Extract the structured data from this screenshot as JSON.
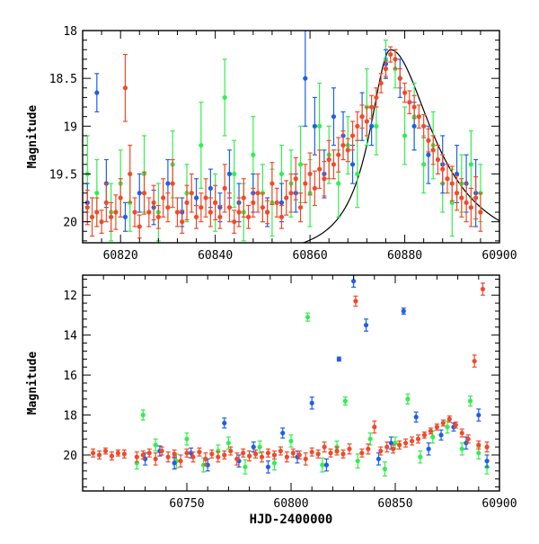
{
  "colors": {
    "blue": "#1f5fe8",
    "green": "#33ee4d",
    "red": "#f04a2a",
    "axis": "#000000",
    "model": "#000000"
  },
  "chart_data": [
    {
      "type": "scatter",
      "name": "top-panel",
      "title": "",
      "xlabel": "",
      "ylabel": "Magnitude",
      "xlim": [
        60812,
        60900
      ],
      "ylim": [
        20.22,
        18.0
      ],
      "y_inverted": true,
      "xticks": [
        60820,
        60840,
        60860,
        60880,
        60900
      ],
      "yticks": [
        18,
        18.5,
        19,
        19.5,
        20
      ],
      "ytick_labels": [
        "18",
        "18.5",
        "19",
        "19.5",
        "20"
      ],
      "grid": false,
      "legend": "none",
      "model_curve": {
        "description_free": true,
        "t_peak": 60877,
        "peak_mag": 18.2,
        "baseline_mag": 20.4,
        "rise_width": 5.5,
        "decline_width": 11,
        "stroke": "#000000"
      },
      "series": [
        {
          "color_key": "red",
          "x": [
            60813,
            60814,
            60815,
            60816,
            60817,
            60818,
            60819,
            60820,
            60821,
            60822,
            60823,
            60824,
            60825,
            60826,
            60827,
            60828,
            60829,
            60830,
            60831,
            60832,
            60833,
            60834,
            60835,
            60836,
            60837,
            60838,
            60839,
            60840,
            60841,
            60842,
            60843,
            60844,
            60845,
            60846,
            60847,
            60848,
            60849,
            60850,
            60851,
            60852,
            60853,
            60854,
            60855,
            60856,
            60857,
            60858,
            60859,
            60860,
            60861,
            60862,
            60863,
            60864,
            60865,
            60866,
            60867,
            60868,
            60869,
            60870,
            60871,
            60872,
            60873,
            60874,
            60875,
            60876,
            60877,
            60878,
            60879,
            60880,
            60881,
            60882,
            60883,
            60884,
            60885,
            60886,
            60887,
            60888,
            60889,
            60890,
            60891,
            60892,
            60893,
            60894,
            60895,
            60896
          ],
          "y": [
            19.85,
            19.95,
            19.9,
            20.0,
            19.8,
            19.95,
            19.9,
            19.75,
            18.6,
            19.5,
            19.9,
            20.05,
            19.7,
            19.9,
            19.8,
            19.95,
            19.75,
            19.85,
            19.6,
            19.9,
            20.0,
            19.8,
            19.7,
            19.95,
            19.85,
            19.75,
            19.9,
            19.8,
            19.95,
            19.65,
            19.85,
            20.0,
            19.9,
            19.75,
            19.95,
            19.8,
            19.7,
            19.85,
            19.9,
            19.6,
            19.8,
            19.95,
            19.75,
            19.7,
            19.55,
            19.85,
            19.6,
            19.5,
            19.65,
            19.45,
            19.55,
            19.35,
            19.4,
            19.3,
            19.2,
            19.25,
            19.1,
            19.0,
            18.9,
            18.95,
            18.8,
            18.7,
            18.55,
            18.4,
            18.25,
            18.3,
            18.5,
            18.65,
            18.75,
            18.8,
            18.9,
            19.0,
            19.15,
            19.25,
            19.35,
            19.45,
            19.55,
            19.6,
            19.7,
            19.75,
            19.8,
            19.85,
            19.75,
            19.9
          ],
          "err": [
            0.18,
            0.2,
            0.15,
            0.12,
            0.2,
            0.15,
            0.18,
            0.2,
            0.35,
            0.3,
            0.15,
            0.12,
            0.22,
            0.15,
            0.18,
            0.12,
            0.2,
            0.15,
            0.25,
            0.15,
            0.12,
            0.18,
            0.2,
            0.12,
            0.15,
            0.2,
            0.15,
            0.18,
            0.12,
            0.25,
            0.15,
            0.12,
            0.15,
            0.2,
            0.12,
            0.15,
            0.2,
            0.15,
            0.12,
            0.22,
            0.15,
            0.12,
            0.18,
            0.2,
            0.22,
            0.15,
            0.2,
            0.22,
            0.18,
            0.2,
            0.18,
            0.2,
            0.15,
            0.18,
            0.15,
            0.12,
            0.15,
            0.15,
            0.12,
            0.15,
            0.12,
            0.1,
            0.1,
            0.08,
            0.08,
            0.1,
            0.1,
            0.1,
            0.12,
            0.12,
            0.12,
            0.12,
            0.12,
            0.15,
            0.15,
            0.15,
            0.15,
            0.18,
            0.18,
            0.2,
            0.2,
            0.2,
            0.22,
            0.2
          ]
        },
        {
          "color_key": "green",
          "x": [
            60813,
            60815,
            60818,
            60820,
            60822,
            60825,
            60828,
            60831,
            60834,
            60837,
            60840,
            60842,
            60844,
            60846,
            60848,
            60850,
            60852,
            60854,
            60856,
            60858,
            60860,
            60862,
            60864,
            60866,
            60868,
            60870,
            60872,
            60874,
            60876,
            60878,
            60880,
            60882,
            60884,
            60886,
            60888,
            60890,
            60892,
            60894,
            60896
          ],
          "y": [
            19.5,
            19.7,
            19.9,
            19.6,
            19.8,
            19.5,
            19.9,
            19.4,
            19.7,
            19.2,
            19.8,
            18.7,
            19.5,
            19.9,
            19.3,
            19.7,
            19.8,
            19.5,
            19.6,
            19.4,
            19.7,
            19.0,
            19.3,
            19.6,
            19.2,
            19.5,
            18.8,
            19.0,
            18.3,
            18.4,
            19.1,
            18.9,
            19.4,
            19.2,
            19.6,
            19.8,
            19.6,
            19.4,
            19.7
          ],
          "err": [
            0.4,
            0.35,
            0.3,
            0.35,
            0.3,
            0.4,
            0.3,
            0.35,
            0.3,
            0.45,
            0.3,
            0.4,
            0.35,
            0.3,
            0.4,
            0.3,
            0.35,
            0.3,
            0.35,
            0.4,
            0.35,
            0.45,
            0.3,
            0.35,
            0.3,
            0.35,
            0.4,
            0.3,
            0.2,
            0.2,
            0.3,
            0.35,
            0.3,
            0.35,
            0.3,
            0.35,
            0.3,
            0.35,
            0.3
          ]
        },
        {
          "color_key": "blue",
          "x": [
            60813,
            60815,
            60817,
            60821,
            60824,
            60827,
            60830,
            60833,
            60836,
            60839,
            60841,
            60843,
            60845,
            60848,
            60851,
            60854,
            60857,
            60859,
            60861,
            60863,
            60865,
            60867,
            60869,
            60871,
            60873,
            60876,
            60879,
            60882,
            60885,
            60888,
            60891,
            60893,
            60895
          ],
          "y": [
            19.8,
            18.65,
            19.6,
            19.95,
            19.7,
            19.85,
            19.6,
            19.9,
            19.75,
            19.65,
            19.85,
            19.5,
            19.8,
            19.7,
            19.9,
            19.8,
            19.7,
            18.5,
            19.0,
            19.5,
            18.9,
            19.1,
            19.4,
            18.9,
            19.0,
            18.35,
            18.5,
            19.0,
            19.3,
            19.4,
            19.5,
            19.6,
            19.7
          ],
          "err": [
            0.2,
            0.2,
            0.25,
            0.15,
            0.2,
            0.18,
            0.25,
            0.15,
            0.2,
            0.2,
            0.15,
            0.25,
            0.2,
            0.2,
            0.15,
            0.2,
            0.2,
            0.5,
            0.3,
            0.25,
            0.3,
            0.25,
            0.2,
            0.25,
            0.2,
            0.15,
            0.2,
            0.25,
            0.3,
            0.3,
            0.3,
            0.3,
            0.35
          ]
        }
      ]
    },
    {
      "type": "scatter",
      "name": "bottom-panel",
      "title": "",
      "xlabel": "HJD-2400000",
      "ylabel": "Magnitude",
      "xlim": [
        60700,
        60900
      ],
      "ylim": [
        21.8,
        11.0
      ],
      "y_inverted": true,
      "xticks": [
        60750,
        60800,
        60850,
        60900
      ],
      "yticks": [
        12,
        14,
        16,
        18,
        20
      ],
      "ytick_labels": [
        "12",
        "14",
        "16",
        "18",
        "20"
      ],
      "grid": false,
      "legend": "none",
      "series": [
        {
          "color_key": "red",
          "x": [
            60705,
            60708,
            60711,
            60714,
            60717,
            60720,
            60726,
            60729,
            60732,
            60735,
            60738,
            60741,
            60744,
            60747,
            60750,
            60753,
            60756,
            60759,
            60762,
            60765,
            60768,
            60771,
            60774,
            60777,
            60780,
            60783,
            60786,
            60789,
            60792,
            60795,
            60798,
            60801,
            60804,
            60807,
            60810,
            60813,
            60816,
            60819,
            60822,
            60825,
            60828,
            60831,
            60834,
            60837,
            60840,
            60843,
            60846,
            60849,
            60852,
            60855,
            60858,
            60861,
            60864,
            60867,
            60870,
            60873,
            60876,
            60879,
            60882,
            60885,
            60888,
            60890,
            60892,
            60894
          ],
          "y": [
            19.9,
            20.0,
            19.8,
            20.05,
            19.9,
            19.95,
            20.1,
            20.0,
            19.9,
            20.2,
            19.8,
            20.1,
            19.95,
            20.3,
            19.9,
            20.1,
            19.85,
            20.2,
            19.95,
            20.1,
            20.0,
            19.8,
            20.2,
            19.9,
            20.05,
            19.95,
            20.1,
            19.9,
            20.0,
            19.8,
            20.1,
            19.9,
            20.0,
            20.2,
            19.85,
            19.95,
            19.6,
            19.9,
            19.8,
            19.95,
            19.7,
            12.3,
            19.9,
            19.7,
            18.6,
            19.8,
            19.6,
            19.7,
            19.5,
            19.4,
            19.3,
            19.2,
            19.0,
            18.8,
            18.6,
            18.4,
            18.2,
            18.5,
            18.9,
            19.2,
            15.3,
            19.5,
            11.7,
            19.6
          ],
          "err": [
            0.2,
            0.2,
            0.15,
            0.2,
            0.15,
            0.2,
            0.25,
            0.2,
            0.2,
            0.3,
            0.2,
            0.25,
            0.2,
            0.3,
            0.2,
            0.25,
            0.2,
            0.3,
            0.2,
            0.25,
            0.2,
            0.2,
            0.3,
            0.2,
            0.25,
            0.2,
            0.25,
            0.2,
            0.2,
            0.2,
            0.25,
            0.2,
            0.2,
            0.3,
            0.2,
            0.2,
            0.25,
            0.2,
            0.2,
            0.2,
            0.25,
            0.25,
            0.2,
            0.25,
            0.3,
            0.2,
            0.25,
            0.2,
            0.2,
            0.2,
            0.2,
            0.2,
            0.15,
            0.15,
            0.15,
            0.15,
            0.15,
            0.15,
            0.2,
            0.2,
            0.3,
            0.2,
            0.3,
            0.25
          ]
        },
        {
          "color_key": "green",
          "x": [
            60726,
            60729,
            60735,
            60745,
            60750,
            60758,
            60765,
            60770,
            60778,
            60785,
            60792,
            60800,
            60808,
            60815,
            60822,
            60826,
            60832,
            60838,
            60845,
            60850,
            60856,
            60862,
            60868,
            60875,
            60882,
            60886,
            60890,
            60894
          ],
          "y": [
            20.4,
            18.0,
            19.5,
            20.3,
            19.2,
            20.5,
            19.8,
            19.4,
            20.6,
            19.6,
            20.4,
            19.3,
            13.1,
            20.5,
            19.6,
            17.3,
            20.3,
            19.2,
            20.7,
            19.4,
            17.2,
            20.1,
            19.1,
            18.6,
            19.7,
            17.3,
            19.9,
            20.6
          ],
          "err": [
            0.3,
            0.25,
            0.3,
            0.35,
            0.3,
            0.35,
            0.3,
            0.3,
            0.35,
            0.3,
            0.35,
            0.3,
            0.2,
            0.35,
            0.3,
            0.2,
            0.35,
            0.3,
            0.35,
            0.3,
            0.25,
            0.3,
            0.3,
            0.3,
            0.3,
            0.25,
            0.3,
            0.35
          ]
        },
        {
          "color_key": "blue",
          "x": [
            60730,
            60737,
            60744,
            60752,
            60760,
            60768,
            60775,
            60782,
            60789,
            60796,
            60803,
            60810,
            60817,
            60823,
            60830,
            60836,
            60842,
            60848,
            60854,
            60860,
            60866,
            60872,
            60878,
            60884,
            60890,
            60894
          ],
          "y": [
            20.2,
            19.8,
            20.4,
            19.9,
            20.5,
            18.4,
            20.3,
            19.6,
            20.6,
            18.9,
            20.1,
            17.4,
            20.5,
            15.2,
            11.3,
            13.5,
            20.2,
            19.4,
            12.8,
            18.1,
            19.7,
            19.0,
            18.6,
            19.4,
            18.0,
            20.3
          ],
          "err": [
            0.3,
            0.25,
            0.3,
            0.25,
            0.3,
            0.25,
            0.3,
            0.25,
            0.3,
            0.25,
            0.3,
            0.3,
            0.3,
            0.1,
            0.3,
            0.3,
            0.3,
            0.3,
            0.15,
            0.25,
            0.3,
            0.25,
            0.2,
            0.3,
            0.3,
            0.3
          ]
        }
      ]
    }
  ]
}
